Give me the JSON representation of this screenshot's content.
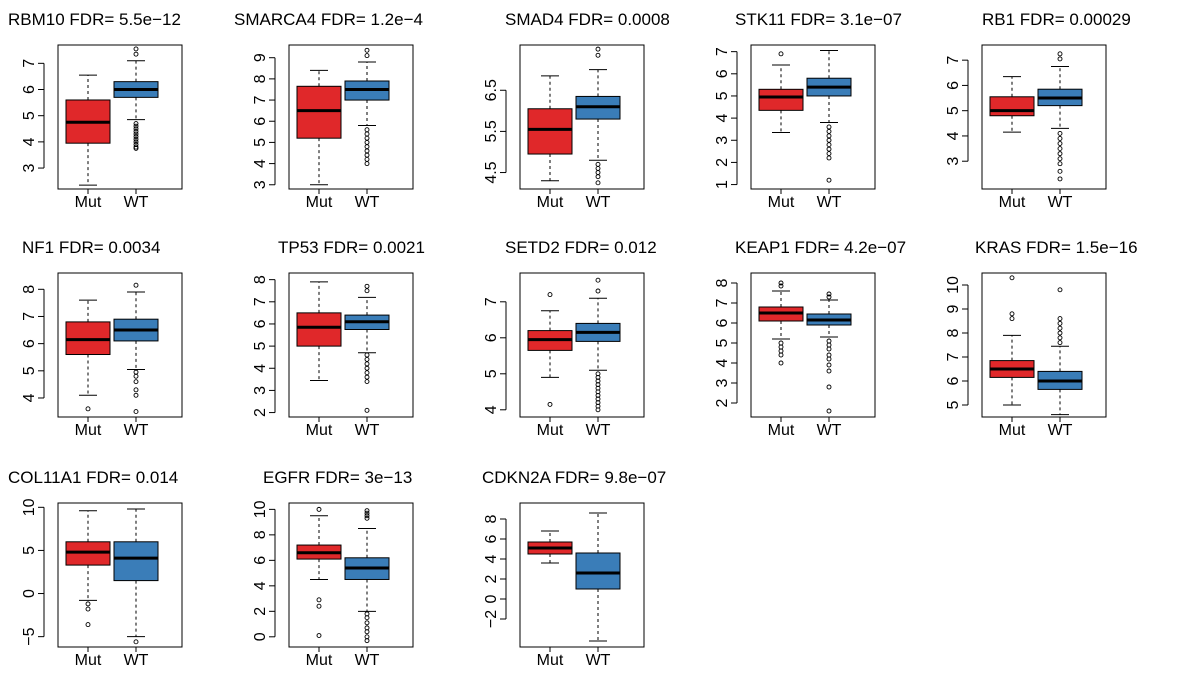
{
  "colors": {
    "mut": "#e0282a",
    "wt": "#3a7db8"
  },
  "chart_data": [
    {
      "type": "box",
      "title": "RBM10 FDR= 5.5e−12",
      "categories": [
        "Mut",
        "WT"
      ],
      "ylim": [
        2.2,
        7.7
      ],
      "yticks": [
        3,
        4,
        5,
        6,
        7
      ],
      "boxes": [
        {
          "whisker_low": 2.35,
          "q1": 3.95,
          "median": 4.75,
          "q3": 5.6,
          "whisker_high": 6.55,
          "outliers": []
        },
        {
          "whisker_low": 4.85,
          "q1": 5.7,
          "median": 6.0,
          "q3": 6.3,
          "whisker_high": 7.1,
          "outliers": [
            4.7,
            4.6,
            4.5,
            4.4,
            4.3,
            4.2,
            4.1,
            4.0,
            3.9,
            3.8,
            3.75,
            7.35,
            7.55
          ]
        }
      ]
    },
    {
      "type": "box",
      "title": "SMARCA4 FDR= 1.2e−4",
      "categories": [
        "Mut",
        "WT"
      ],
      "ylim": [
        2.8,
        9.6
      ],
      "yticks": [
        3,
        4,
        5,
        6,
        7,
        8,
        9
      ],
      "boxes": [
        {
          "whisker_low": 3.0,
          "q1": 5.2,
          "median": 6.5,
          "q3": 7.65,
          "whisker_high": 8.4,
          "outliers": []
        },
        {
          "whisker_low": 5.8,
          "q1": 7.0,
          "median": 7.5,
          "q3": 7.9,
          "whisker_high": 8.8,
          "outliers": [
            5.6,
            5.4,
            5.2,
            5.0,
            4.8,
            4.6,
            4.4,
            4.2,
            4.0,
            9.1,
            9.35
          ]
        }
      ]
    },
    {
      "type": "box",
      "title": "SMAD4 FDR= 0.0008",
      "categories": [
        "Mut",
        "WT"
      ],
      "ylim": [
        4.1,
        7.6
      ],
      "yticks": [
        4.5,
        5.5,
        6.5
      ],
      "boxes": [
        {
          "whisker_low": 4.3,
          "q1": 4.95,
          "median": 5.55,
          "q3": 6.05,
          "whisker_high": 6.85,
          "outliers": []
        },
        {
          "whisker_low": 4.8,
          "q1": 5.8,
          "median": 6.1,
          "q3": 6.35,
          "whisker_high": 7.0,
          "outliers": [
            4.7,
            4.6,
            4.5,
            4.4,
            4.25,
            7.35,
            7.5
          ]
        }
      ]
    },
    {
      "type": "box",
      "title": "STK11 FDR= 3.1e−07",
      "categories": [
        "Mut",
        "WT"
      ],
      "ylim": [
        0.8,
        7.3
      ],
      "yticks": [
        1,
        2,
        3,
        4,
        5,
        6,
        7
      ],
      "boxes": [
        {
          "whisker_low": 3.35,
          "q1": 4.35,
          "median": 4.95,
          "q3": 5.3,
          "whisker_high": 6.4,
          "outliers": [
            6.9
          ]
        },
        {
          "whisker_low": 3.8,
          "q1": 5.0,
          "median": 5.4,
          "q3": 5.8,
          "whisker_high": 7.05,
          "outliers": [
            3.6,
            3.4,
            3.2,
            3.0,
            2.8,
            2.6,
            2.4,
            2.2,
            1.2
          ]
        }
      ]
    },
    {
      "type": "box",
      "title": "RB1 FDR= 0.00029",
      "categories": [
        "Mut",
        "WT"
      ],
      "ylim": [
        1.9,
        7.6
      ],
      "yticks": [
        3,
        4,
        5,
        6,
        7
      ],
      "boxes": [
        {
          "whisker_low": 4.15,
          "q1": 4.8,
          "median": 5.0,
          "q3": 5.55,
          "whisker_high": 6.35,
          "outliers": []
        },
        {
          "whisker_low": 4.3,
          "q1": 5.2,
          "median": 5.5,
          "q3": 5.85,
          "whisker_high": 6.75,
          "outliers": [
            4.1,
            3.9,
            3.7,
            3.5,
            3.3,
            3.1,
            2.9,
            2.6,
            2.3,
            7.05,
            7.25
          ]
        }
      ]
    },
    {
      "type": "box",
      "title": "NF1 FDR= 0.0034",
      "categories": [
        "Mut",
        "WT"
      ],
      "ylim": [
        3.3,
        8.6
      ],
      "yticks": [
        4,
        5,
        6,
        7,
        8
      ],
      "boxes": [
        {
          "whisker_low": 4.1,
          "q1": 5.6,
          "median": 6.15,
          "q3": 6.8,
          "whisker_high": 7.6,
          "outliers": [
            3.6
          ]
        },
        {
          "whisker_low": 5.05,
          "q1": 6.1,
          "median": 6.5,
          "q3": 6.9,
          "whisker_high": 7.9,
          "outliers": [
            4.95,
            4.8,
            4.6,
            4.3,
            4.1,
            3.5,
            8.15
          ]
        }
      ]
    },
    {
      "type": "box",
      "title": "TP53 FDR= 0.0021",
      "categories": [
        "Mut",
        "WT"
      ],
      "ylim": [
        1.8,
        8.3
      ],
      "yticks": [
        2,
        3,
        4,
        5,
        6,
        7,
        8
      ],
      "boxes": [
        {
          "whisker_low": 3.45,
          "q1": 5.0,
          "median": 5.85,
          "q3": 6.5,
          "whisker_high": 7.9,
          "outliers": []
        },
        {
          "whisker_low": 4.7,
          "q1": 5.75,
          "median": 6.1,
          "q3": 6.4,
          "whisker_high": 7.2,
          "outliers": [
            4.6,
            4.4,
            4.2,
            4.0,
            3.8,
            3.6,
            3.4,
            2.1,
            7.5,
            7.7
          ]
        }
      ]
    },
    {
      "type": "box",
      "title": "SETD2 FDR= 0.012",
      "categories": [
        "Mut",
        "WT"
      ],
      "ylim": [
        3.8,
        7.8
      ],
      "yticks": [
        4,
        5,
        6,
        7
      ],
      "boxes": [
        {
          "whisker_low": 4.9,
          "q1": 5.65,
          "median": 5.95,
          "q3": 6.2,
          "whisker_high": 6.75,
          "outliers": [
            4.15,
            7.2
          ]
        },
        {
          "whisker_low": 5.1,
          "q1": 5.9,
          "median": 6.15,
          "q3": 6.4,
          "whisker_high": 7.1,
          "outliers": [
            5.0,
            4.9,
            4.8,
            4.7,
            4.6,
            4.5,
            4.4,
            4.3,
            4.2,
            4.1,
            4.0,
            7.3,
            7.6
          ]
        }
      ]
    },
    {
      "type": "box",
      "title": "KEAP1 FDR= 4.2e−07",
      "categories": [
        "Mut",
        "WT"
      ],
      "ylim": [
        1.3,
        8.5
      ],
      "yticks": [
        2,
        3,
        4,
        5,
        6,
        7,
        8
      ],
      "boxes": [
        {
          "whisker_low": 5.2,
          "q1": 6.1,
          "median": 6.5,
          "q3": 6.8,
          "whisker_high": 7.6,
          "outliers": [
            5.0,
            4.8,
            4.6,
            4.4,
            4.0,
            7.85,
            8.0
          ]
        },
        {
          "whisker_low": 5.3,
          "q1": 5.9,
          "median": 6.15,
          "q3": 6.45,
          "whisker_high": 7.15,
          "outliers": [
            5.1,
            4.9,
            4.7,
            4.4,
            4.2,
            3.9,
            3.6,
            2.8,
            1.6,
            7.3,
            7.45
          ]
        }
      ]
    },
    {
      "type": "box",
      "title": "KRAS FDR= 1.5e−16",
      "categories": [
        "Mut",
        "WT"
      ],
      "ylim": [
        4.5,
        10.5
      ],
      "yticks": [
        5,
        6,
        7,
        8,
        9,
        10
      ],
      "boxes": [
        {
          "whisker_low": 5.0,
          "q1": 6.15,
          "median": 6.5,
          "q3": 6.85,
          "whisker_high": 7.9,
          "outliers": [
            8.6,
            8.8,
            10.3
          ]
        },
        {
          "whisker_low": 4.6,
          "q1": 5.65,
          "median": 6.0,
          "q3": 6.4,
          "whisker_high": 7.45,
          "outliers": [
            7.6,
            7.8,
            8.0,
            8.2,
            8.4,
            8.6,
            9.8
          ]
        }
      ]
    },
    {
      "type": "box",
      "title": "COL11A1 FDR= 0.014",
      "categories": [
        "Mut",
        "WT"
      ],
      "ylim": [
        -6.2,
        10.5
      ],
      "yticks": [
        -5,
        0,
        5,
        10
      ],
      "boxes": [
        {
          "whisker_low": -0.8,
          "q1": 3.3,
          "median": 4.8,
          "q3": 6.0,
          "whisker_high": 9.6,
          "outliers": [
            -1.2,
            -1.8,
            -3.6
          ]
        },
        {
          "whisker_low": -5.0,
          "q1": 1.5,
          "median": 4.1,
          "q3": 6.0,
          "whisker_high": 9.8,
          "outliers": [
            -5.6
          ]
        }
      ]
    },
    {
      "type": "box",
      "title": "EGFR FDR= 3e−13",
      "categories": [
        "Mut",
        "WT"
      ],
      "ylim": [
        -0.8,
        10.5
      ],
      "yticks": [
        0,
        2,
        4,
        6,
        8,
        10
      ],
      "boxes": [
        {
          "whisker_low": 4.5,
          "q1": 6.1,
          "median": 6.6,
          "q3": 7.2,
          "whisker_high": 9.5,
          "outliers": [
            2.9,
            2.4,
            0.1,
            10.0
          ]
        },
        {
          "whisker_low": 2.0,
          "q1": 4.5,
          "median": 5.4,
          "q3": 6.2,
          "whisker_high": 8.5,
          "outliers": [
            1.8,
            1.5,
            1.1,
            0.7,
            0.4,
            0.0,
            -0.3,
            9.3,
            9.5,
            9.7,
            9.9
          ]
        }
      ]
    },
    {
      "type": "box",
      "title": "CDKN2A FDR= 9.8e−07",
      "categories": [
        "Mut",
        "WT"
      ],
      "ylim": [
        -4.8,
        9.6
      ],
      "yticks": [
        -2,
        0,
        2,
        4,
        6,
        8
      ],
      "boxes": [
        {
          "whisker_low": 3.6,
          "q1": 4.5,
          "median": 5.1,
          "q3": 5.7,
          "whisker_high": 6.8,
          "outliers": []
        },
        {
          "whisker_low": -4.2,
          "q1": 1.0,
          "median": 2.6,
          "q3": 4.6,
          "whisker_high": 8.6,
          "outliers": []
        }
      ]
    }
  ]
}
